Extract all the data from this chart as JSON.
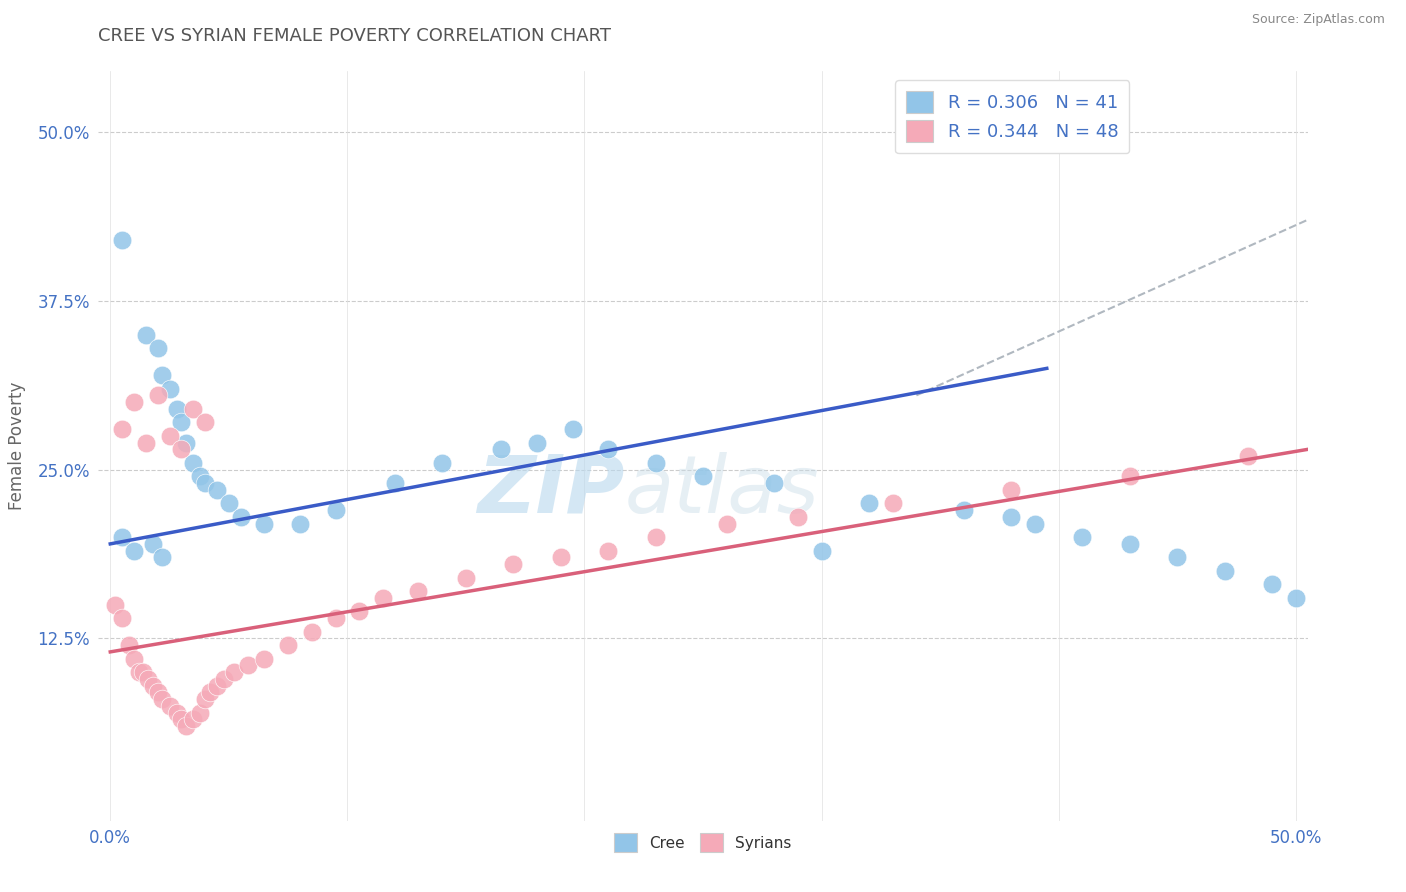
{
  "title": "CREE VS SYRIAN FEMALE POVERTY CORRELATION CHART",
  "source": "Source: ZipAtlas.com",
  "ylabel": "Female Poverty",
  "xlim": [
    -0.005,
    0.505
  ],
  "ylim": [
    -0.01,
    0.545
  ],
  "xtick_positions": [
    0.0,
    0.1,
    0.2,
    0.3,
    0.4,
    0.5
  ],
  "xtick_labels": [
    "0.0%",
    "",
    "",
    "",
    "",
    "50.0%"
  ],
  "ytick_positions": [
    0.125,
    0.25,
    0.375,
    0.5
  ],
  "ytick_labels": [
    "12.5%",
    "25.0%",
    "37.5%",
    "50.0%"
  ],
  "watermark_zip": "ZIP",
  "watermark_atlas": "atlas",
  "cree_R": 0.306,
  "cree_N": 41,
  "syrian_R": 0.344,
  "syrian_N": 48,
  "cree_color": "#92c5e8",
  "syrian_color": "#f5aab8",
  "cree_line_color": "#3a5bc7",
  "syrian_line_color": "#d9607a",
  "gray_line_color": "#b0b8c0",
  "background_color": "#ffffff",
  "grid_color": "#cccccc",
  "cree_x": [
    0.005,
    0.015,
    0.02,
    0.022,
    0.025,
    0.028,
    0.03,
    0.032,
    0.035,
    0.038,
    0.04,
    0.045,
    0.05,
    0.055,
    0.065,
    0.08,
    0.095,
    0.12,
    0.14,
    0.165,
    0.18,
    0.195,
    0.21,
    0.23,
    0.25,
    0.28,
    0.32,
    0.36,
    0.38,
    0.39,
    0.41,
    0.43,
    0.45,
    0.47,
    0.49,
    0.5,
    0.005,
    0.01,
    0.018,
    0.022,
    0.3
  ],
  "cree_y": [
    0.42,
    0.35,
    0.34,
    0.32,
    0.31,
    0.295,
    0.285,
    0.27,
    0.255,
    0.245,
    0.24,
    0.235,
    0.225,
    0.215,
    0.21,
    0.21,
    0.22,
    0.24,
    0.255,
    0.265,
    0.27,
    0.28,
    0.265,
    0.255,
    0.245,
    0.24,
    0.225,
    0.22,
    0.215,
    0.21,
    0.2,
    0.195,
    0.185,
    0.175,
    0.165,
    0.155,
    0.2,
    0.19,
    0.195,
    0.185,
    0.19
  ],
  "syrian_x": [
    0.002,
    0.005,
    0.008,
    0.01,
    0.012,
    0.014,
    0.016,
    0.018,
    0.02,
    0.022,
    0.025,
    0.028,
    0.03,
    0.032,
    0.035,
    0.038,
    0.04,
    0.042,
    0.045,
    0.048,
    0.052,
    0.058,
    0.065,
    0.075,
    0.085,
    0.095,
    0.105,
    0.115,
    0.13,
    0.15,
    0.17,
    0.19,
    0.21,
    0.23,
    0.26,
    0.29,
    0.33,
    0.38,
    0.43,
    0.48,
    0.005,
    0.01,
    0.015,
    0.02,
    0.025,
    0.03,
    0.035,
    0.04
  ],
  "syrian_y": [
    0.15,
    0.14,
    0.12,
    0.11,
    0.1,
    0.1,
    0.095,
    0.09,
    0.085,
    0.08,
    0.075,
    0.07,
    0.065,
    0.06,
    0.065,
    0.07,
    0.08,
    0.085,
    0.09,
    0.095,
    0.1,
    0.105,
    0.11,
    0.12,
    0.13,
    0.14,
    0.145,
    0.155,
    0.16,
    0.17,
    0.18,
    0.185,
    0.19,
    0.2,
    0.21,
    0.215,
    0.225,
    0.235,
    0.245,
    0.26,
    0.28,
    0.3,
    0.27,
    0.305,
    0.275,
    0.265,
    0.295,
    0.285
  ],
  "cree_line_x": [
    0.0,
    0.395
  ],
  "cree_line_y": [
    0.195,
    0.325
  ],
  "syrian_line_x": [
    0.0,
    0.505
  ],
  "syrian_line_y": [
    0.115,
    0.265
  ],
  "gray_line_x": [
    0.34,
    0.505
  ],
  "gray_line_y": [
    0.305,
    0.435
  ]
}
